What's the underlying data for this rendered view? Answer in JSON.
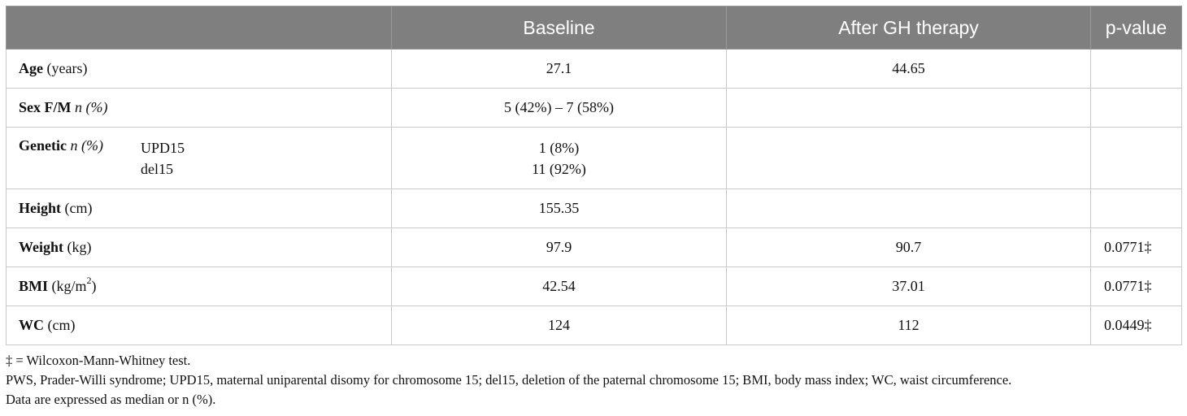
{
  "header": {
    "col_label": "",
    "baseline": "Baseline",
    "after": "After GH therapy",
    "pvalue": "p-value"
  },
  "rows": {
    "age": {
      "name": "Age",
      "unit": "(years)",
      "baseline": "27.1",
      "after": "44.65",
      "p": ""
    },
    "sex": {
      "name": "Sex F/M",
      "qualifier": "n (%)",
      "baseline": "5 (42%) – 7 (58%)",
      "after": "",
      "p": ""
    },
    "genetic": {
      "name": "Genetic",
      "qualifier": "n (%)",
      "sub1": "UPD15",
      "sub2": "del15",
      "baseline1": "1 (8%)",
      "baseline2": "11 (92%)",
      "after": "",
      "p": ""
    },
    "height": {
      "name": "Height",
      "unit": "(cm)",
      "baseline": "155.35",
      "after": "",
      "p": ""
    },
    "weight": {
      "name": "Weight",
      "unit": "(kg)",
      "baseline": "97.9",
      "after": "90.7",
      "p": "0.0771‡"
    },
    "bmi": {
      "name": "BMI",
      "unit_pre": "(kg/m",
      "unit_sup": "2",
      "unit_post": ")",
      "baseline": "42.54",
      "after": "37.01",
      "p": "0.0771‡"
    },
    "wc": {
      "name": "WC",
      "unit": "(cm)",
      "baseline": "124",
      "after": "112",
      "p": "0.0449‡"
    }
  },
  "footnotes": {
    "line1": "‡ = Wilcoxon-Mann-Whitney test.",
    "line2": "PWS, Prader-Willi syndrome; UPD15, maternal uniparental disomy for chromosome 15; del15, deletion of the paternal chromosome 15; BMI, body mass index; WC, waist circumference.",
    "line3": "Data are expressed as median or n (%)."
  }
}
